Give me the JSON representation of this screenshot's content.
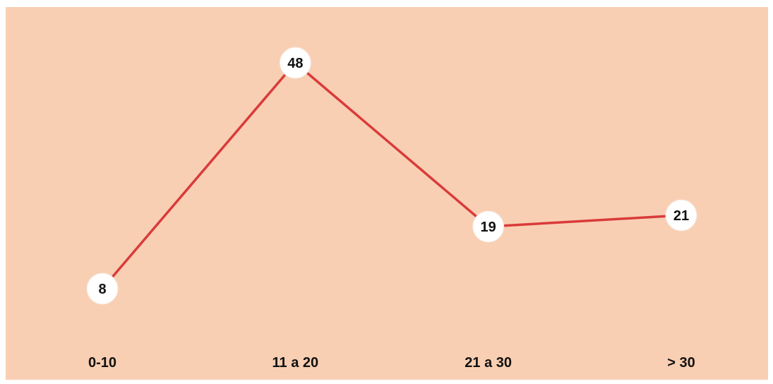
{
  "chart_data": {
    "type": "line",
    "categories": [
      "0-10",
      "11 a 20",
      "21 a 30",
      "> 30"
    ],
    "series": [
      {
        "values": [
          8,
          48,
          19,
          21
        ]
      }
    ],
    "title": "",
    "xlabel": "",
    "ylabel": "",
    "ylim": [
      0,
      50
    ],
    "grid": false,
    "legend": "none",
    "data_labels": true
  },
  "colors": {
    "background": "#f9cfb3",
    "line": "#d93b3b",
    "marker_fill": "#ffffff",
    "text": "#111111"
  }
}
